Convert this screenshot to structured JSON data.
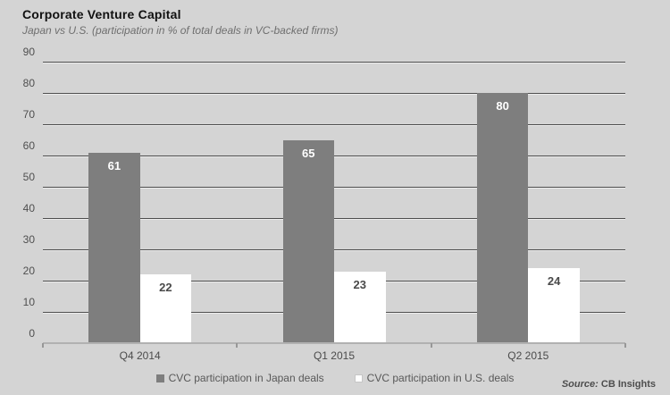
{
  "header": {
    "title": "Corporate Venture Capital",
    "subtitle": "Japan vs U.S. (participation in % of total deals in VC-backed firms)"
  },
  "chart_data": {
    "type": "bar",
    "title": "Corporate Venture Capital",
    "subtitle": "Japan vs U.S. (participation in % of total deals in VC-backed firms)",
    "categories": [
      "Q4 2014",
      "Q1 2015",
      "Q2 2015"
    ],
    "series": [
      {
        "name": "CVC participation in Japan deals",
        "values": [
          61,
          65,
          80
        ],
        "color": "#7e7e7e",
        "label_color": "#ffffff"
      },
      {
        "name": "CVC participation in U.S. deals",
        "values": [
          22,
          23,
          24
        ],
        "color": "#ffffff",
        "label_color": "#4a4a4a"
      }
    ],
    "xlabel": "",
    "ylabel": "",
    "ylim": [
      0,
      90
    ],
    "yticks": [
      0,
      10,
      20,
      30,
      40,
      50,
      60,
      70,
      80,
      90
    ],
    "grid": true,
    "legend_position": "bottom",
    "colors": {
      "background": "#d4d4d4",
      "gridline": "#4e4e4e",
      "axis_line": "#b1b1b1",
      "axis_text": "#4f4f4f"
    }
  },
  "footer": {
    "source_label": "Source:",
    "source_value": "CB Insights"
  }
}
